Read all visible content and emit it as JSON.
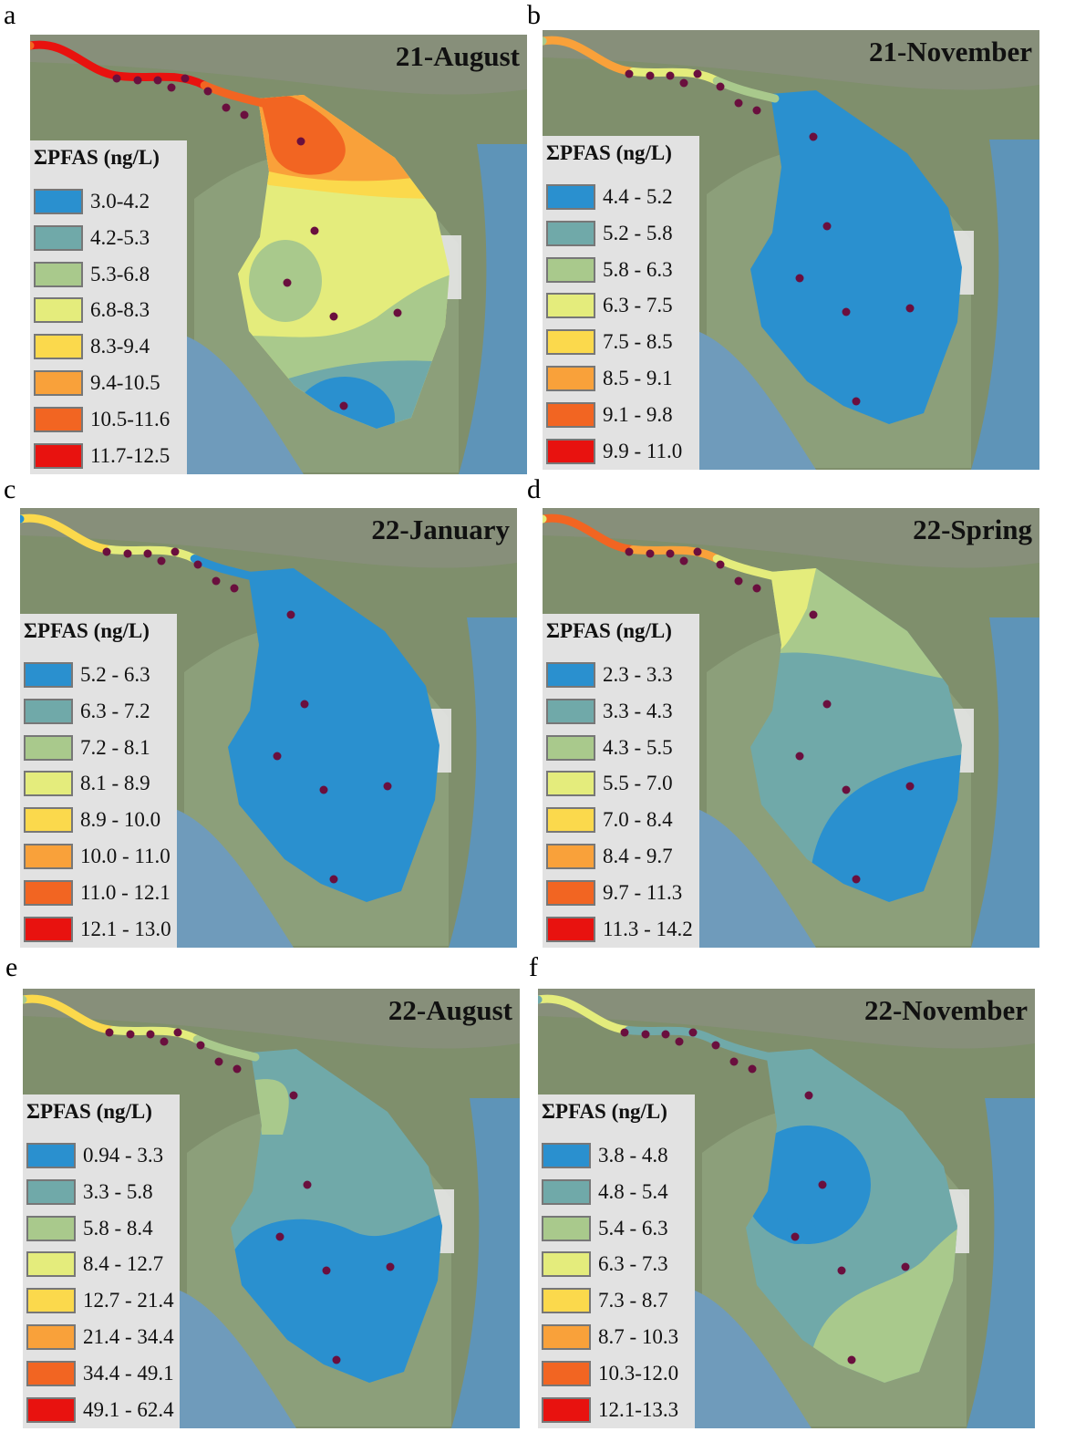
{
  "class_colors": [
    "#2a90cf",
    "#70a9a9",
    "#a9c98c",
    "#e4ec7c",
    "#fbd94c",
    "#f9a13a",
    "#f26522",
    "#e8120f"
  ],
  "legend_title": "ΣPFAS (ng/L)",
  "panels": [
    {
      "letter": "a",
      "title": "21-August",
      "legend": [
        "3.0-4.2",
        "4.2-5.3",
        "5.3-6.8",
        "6.8-8.3",
        "8.3-9.4",
        "9.4-10.5",
        "10.5-11.6",
        "11.7-12.5"
      ]
    },
    {
      "letter": "b",
      "title": "21-November",
      "legend": [
        "4.4 - 5.2",
        "5.2 - 5.8",
        "5.8 - 6.3",
        "6.3 - 7.5",
        "7.5 - 8.5",
        "8.5 - 9.1",
        "9.1 - 9.8",
        "9.9 - 11.0"
      ]
    },
    {
      "letter": "c",
      "title": "22-January",
      "legend": [
        "5.2 - 6.3",
        "6.3 - 7.2",
        "7.2 - 8.1",
        "8.1 - 8.9",
        "8.9 - 10.0",
        "10.0 - 11.0",
        "11.0 - 12.1",
        "12.1 - 13.0"
      ]
    },
    {
      "letter": "d",
      "title": "22-Spring",
      "legend": [
        "2.3 - 3.3",
        "3.3 - 4.3",
        "4.3 - 5.5",
        "5.5 - 7.0",
        "7.0 - 8.4",
        "8.4 - 9.7",
        "9.7 - 11.3",
        "11.3 - 14.2"
      ]
    },
    {
      "letter": "e",
      "title": "22-August",
      "legend": [
        "0.94 - 3.3",
        "3.3 - 5.8",
        "5.8 - 8.4",
        "8.4 - 12.7",
        "12.7 - 21.4",
        "21.4 - 34.4",
        "34.4 - 49.1",
        "49.1 - 62.4"
      ]
    },
    {
      "letter": "f",
      "title": "22-November",
      "legend": [
        "3.8 - 4.8",
        "4.8 - 5.4",
        "5.4 - 6.3",
        "6.3 - 7.3",
        "7.3 - 8.7",
        "8.7 - 10.3",
        "10.3-12.0",
        "12.1-13.3"
      ]
    }
  ]
}
